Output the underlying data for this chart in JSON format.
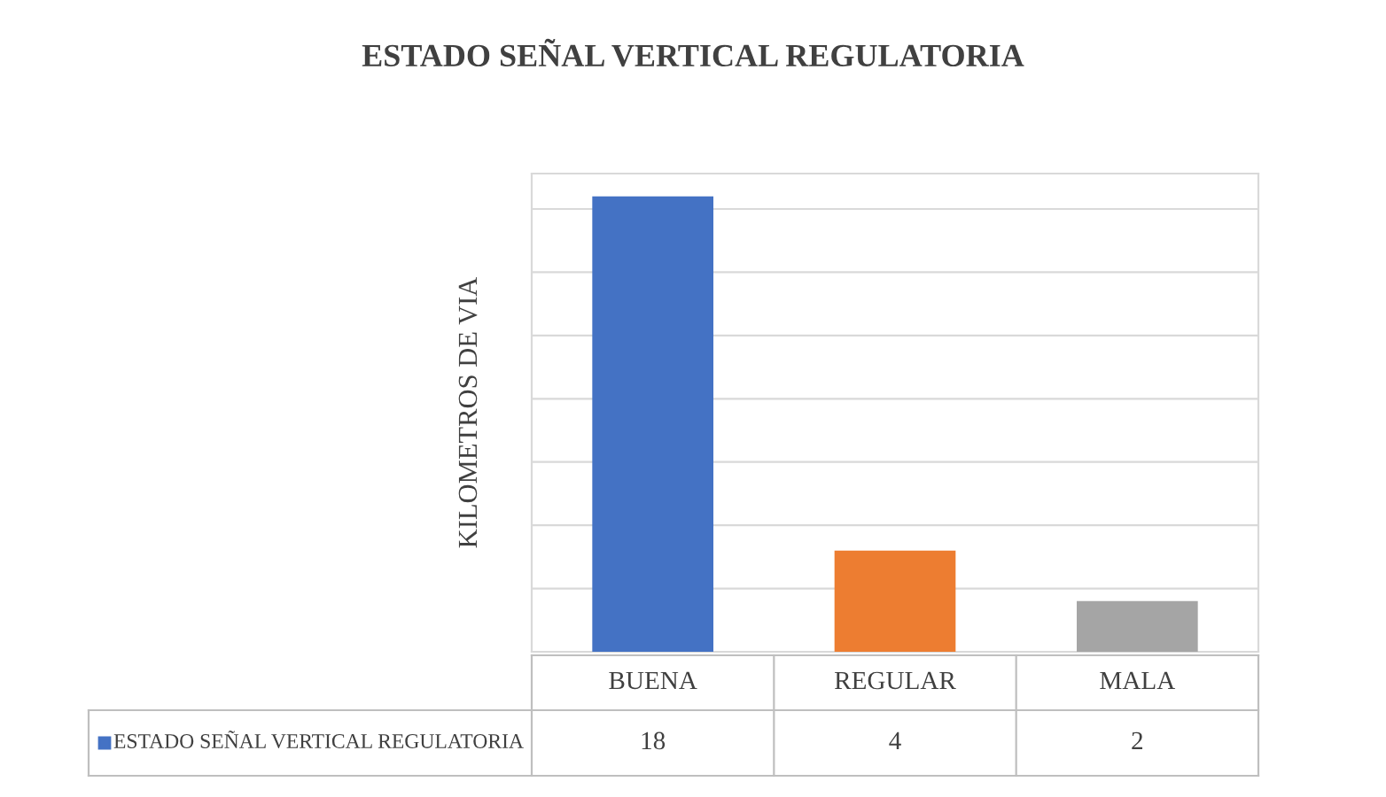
{
  "chart_data": {
    "type": "bar",
    "title": "ESTADO SEÑAL VERTICAL REGULATORIA",
    "ylabel": "KILOMETROS DE VIA",
    "categories": [
      "BUENA",
      "REGULAR",
      "MALA"
    ],
    "series": [
      {
        "name": "ESTADO SEÑAL VERTICAL REGULATORIA",
        "colors": [
          "#4472c4",
          "#ed7d31",
          "#a5a5a5"
        ],
        "values": [
          18,
          4,
          2
        ]
      }
    ],
    "data_labels": true,
    "grid": "y",
    "legend": "bottom",
    "tick_labels": false
  }
}
